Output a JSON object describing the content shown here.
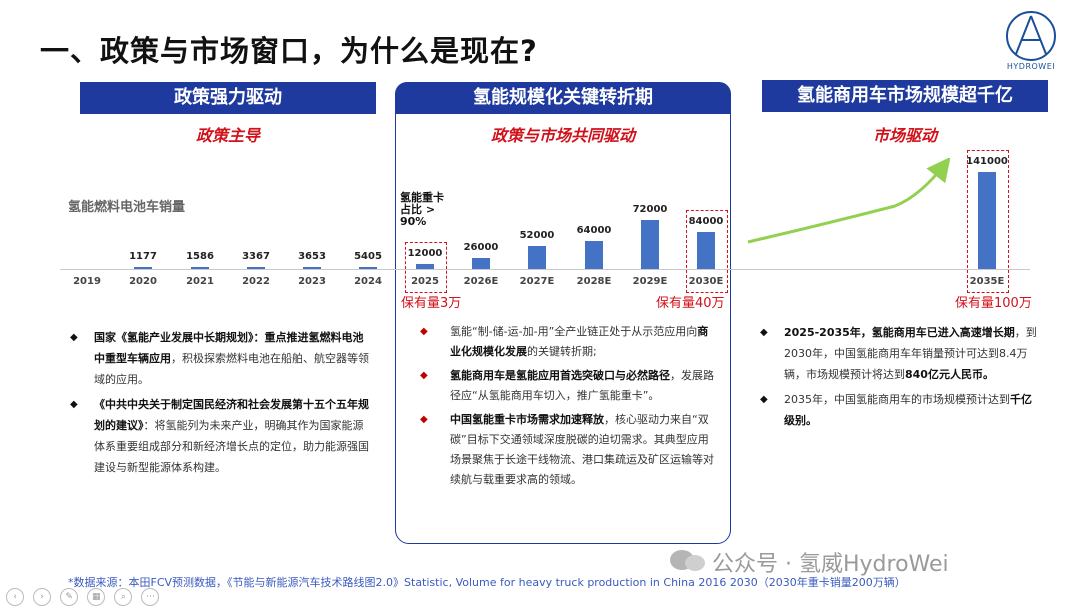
{
  "title": "一、政策与市场窗口，为什么是现在?",
  "logo": {
    "text": "HYDROWEI"
  },
  "sections": [
    {
      "banner": "政策强力驱动",
      "subtitle": "政策主导"
    },
    {
      "banner": "氢能规模化关键转折期",
      "subtitle": "政策与市场共同驱动"
    },
    {
      "banner": "氢能商用车市场规模超千亿",
      "subtitle": "市场驱动"
    }
  ],
  "chart_label": "氢能燃料电池车销量",
  "chart_note": [
    "氢能重卡",
    "占比 >",
    "90%"
  ],
  "chart_data": {
    "type": "bar",
    "title": "氢能燃料电池车销量",
    "categories": [
      "2019",
      "2020",
      "2021",
      "2022",
      "2023",
      "2024",
      "2025",
      "2026E",
      "2027E",
      "2028E",
      "2029E",
      "2030E",
      "2035E"
    ],
    "values": [
      null,
      1177,
      1586,
      3367,
      3653,
      5405,
      12000,
      26000,
      52000,
      64000,
      72000,
      84000,
      141000
    ],
    "value_labels": [
      "",
      "1177",
      "1586",
      "3367",
      "3653",
      "5405",
      "12000",
      "26000",
      "52000",
      "64000",
      "72000",
      "84000",
      "141000"
    ],
    "highlighted": [
      "2025",
      "2030E",
      "2035E"
    ],
    "trend_arrow_between": [
      "2030E",
      "2035E"
    ]
  },
  "stock_labels": [
    "保有量3万",
    "保有量40万",
    "保有量100万"
  ],
  "bullets_left": [
    {
      "bold": "国家《氢能产业发展中长期规划》：重点推进氢燃料电池中重型车辆应用",
      "text": "，积极探索燃料电池在船舶、航空器等领域的应用。"
    },
    {
      "bold": "《中共中央关于制定国民经济和社会发展第十五个五年规划的建议》",
      "text": "：将氢能列为未来产业，明确其作为国家能源体系重要组成部分和新经济增长点的定位，助力能源强国建设与新型能源体系构建。"
    }
  ],
  "bullets_mid": [
    {
      "pre": "氢能“制-储-运-加-用”全产业链正处于从示范应用向",
      "bold": "商业化规模化发展",
      "text": "的关键转折期;"
    },
    {
      "pre": "",
      "bold": "氢能商用车是氢能应用首选突破口与必然路径",
      "text": "，发展路径应“从氢能商用车切入，推广氢能重卡”。"
    },
    {
      "pre": "",
      "bold": "中国氢能重卡市场需求加速释放",
      "text": "，核心驱动力来自“双碳”目标下交通领域深度脱碳的迫切需求。其典型应用场景聚焦于长途干线物流、港口集疏运及矿区运输等对续航与载重要求高的领域。"
    }
  ],
  "bullets_right": [
    {
      "bold": "2025-2035年，氢能商用车已进入高速增长期",
      "text": "，到2030年，中国氢能商用车年销量预计可达到8.4万辆，市场规模预计将达到",
      "bold2": "840亿元人民币。",
      "text2": ""
    },
    {
      "bold": "",
      "text": "2035年，中国氢能商用车的市场规模预计达到",
      "bold2": "千亿级别。",
      "text2": ""
    }
  ],
  "source": "*数据来源：本田FCV预测数据，《节能与新能源汽车技术路线图2.0》Statistic, Volume for heavy truck production in China 2016 2030（2030年重卡销量200万辆）",
  "watermark": "公众号 · 氢威HydroWei",
  "colors": {
    "banner": "#1f3a9e",
    "accent_red": "#d0121b",
    "bar": "#4472c4",
    "trend": "#92d050"
  }
}
